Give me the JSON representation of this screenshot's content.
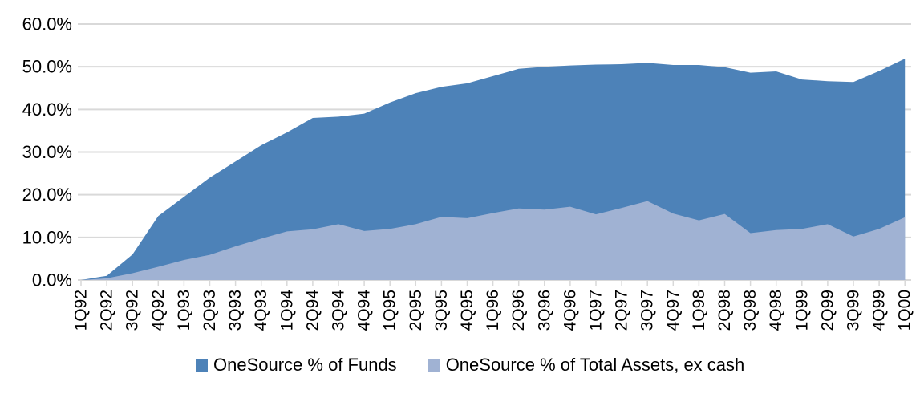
{
  "chart_data": {
    "type": "area",
    "title": "",
    "xlabel": "",
    "ylabel": "",
    "ylim": [
      0,
      60
    ],
    "ytick_step": 10,
    "ytick_labels": [
      "0.0%",
      "10.0%",
      "20.0%",
      "30.0%",
      "40.0%",
      "50.0%",
      "60.0%"
    ],
    "grid": "horizontal",
    "legend_position": "bottom",
    "categories": [
      "1Q92",
      "2Q92",
      "3Q92",
      "4Q92",
      "1Q93",
      "2Q93",
      "3Q93",
      "4Q93",
      "1Q94",
      "2Q94",
      "3Q94",
      "4Q94",
      "1Q95",
      "2Q95",
      "3Q95",
      "4Q95",
      "1Q96",
      "2Q96",
      "3Q96",
      "4Q96",
      "1Q97",
      "2Q97",
      "3Q97",
      "4Q97",
      "1Q98",
      "2Q98",
      "3Q98",
      "4Q98",
      "1Q99",
      "2Q99",
      "3Q99",
      "4Q99",
      "1Q00"
    ],
    "series": [
      {
        "name": "OneSource % of Funds",
        "color": "#4D82B8",
        "values": [
          0.0,
          1.0,
          6.0,
          15.0,
          19.5,
          24.0,
          27.8,
          31.6,
          34.6,
          38.0,
          38.3,
          39.0,
          41.6,
          43.8,
          45.3,
          46.1,
          47.8,
          49.5,
          50.0,
          50.3,
          50.5,
          50.6,
          50.9,
          50.4,
          50.4,
          49.9,
          48.6,
          48.9,
          47.0,
          46.6,
          46.4,
          49.0,
          51.9
        ]
      },
      {
        "name": "OneSource % of Total Assets, ex cash",
        "color": "#A0B2D3",
        "values": [
          0.0,
          0.4,
          1.6,
          3.1,
          4.7,
          5.9,
          7.9,
          9.7,
          11.4,
          11.9,
          13.1,
          11.5,
          12.0,
          13.1,
          14.8,
          14.5,
          15.7,
          16.8,
          16.5,
          17.2,
          15.4,
          16.9,
          18.5,
          15.6,
          14.0,
          15.5,
          11.0,
          11.7,
          12.0,
          13.1,
          10.2,
          12.0,
          14.7
        ]
      }
    ],
    "colors": {
      "gridline": "#D9D9D9",
      "axis_line": "#D9D9D9",
      "tick": "#D9D9D9",
      "text": "#000000",
      "background": "#FFFFFF"
    }
  }
}
